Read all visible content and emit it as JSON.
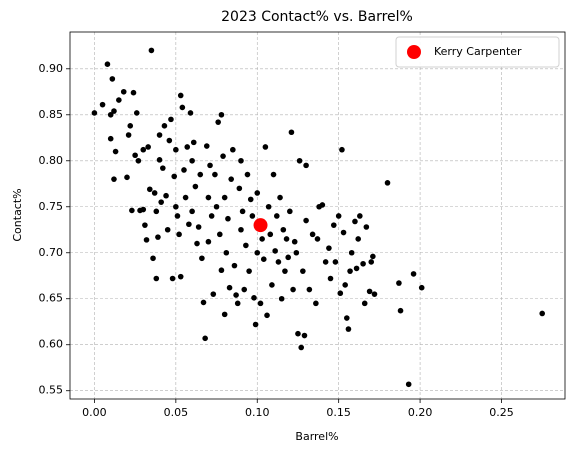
{
  "chart_data": {
    "type": "scatter",
    "title": "2023 Contact% vs. Barrel%",
    "x_label": "Barrel%",
    "y_label": "Contact%",
    "xlim": [
      -0.015,
      0.289
    ],
    "ylim": [
      0.541,
      0.94
    ],
    "xticks": [
      {
        "value": 0,
        "label": "0.00"
      },
      0.05,
      {
        "value": 0.1,
        "label": "0.10"
      },
      0.15,
      {
        "value": 0.2,
        "label": "0.20"
      },
      0.25
    ],
    "yticks": [
      0.55,
      {
        "value": 0.6,
        "label": "0.60"
      },
      0.65,
      {
        "value": 0.7,
        "label": "0.70"
      },
      0.75,
      {
        "value": 0.8,
        "label": "0.80"
      },
      0.85,
      {
        "value": 0.9,
        "label": "0.90"
      }
    ],
    "grid": true,
    "legend": "upper right",
    "series": [
      {
        "color": "#000000",
        "x": [
          0.0,
          0.005,
          0.008,
          0.01,
          0.011,
          0.012,
          0.01,
          0.012,
          0.013,
          0.015,
          0.018,
          0.02,
          0.022,
          0.021,
          0.023,
          0.024,
          0.025,
          0.026,
          0.027,
          0.028,
          0.03,
          0.03,
          0.031,
          0.032,
          0.033,
          0.034,
          0.035,
          0.036,
          0.037,
          0.038,
          0.038,
          0.039,
          0.04,
          0.04,
          0.041,
          0.042,
          0.043,
          0.044,
          0.045,
          0.046,
          0.047,
          0.048,
          0.049,
          0.05,
          0.05,
          0.051,
          0.052,
          0.053,
          0.053,
          0.054,
          0.055,
          0.056,
          0.057,
          0.058,
          0.059,
          0.06,
          0.06,
          0.061,
          0.062,
          0.063,
          0.064,
          0.065,
          0.066,
          0.067,
          0.068,
          0.069,
          0.07,
          0.07,
          0.071,
          0.072,
          0.073,
          0.074,
          0.075,
          0.076,
          0.077,
          0.078,
          0.078,
          0.079,
          0.08,
          0.08,
          0.081,
          0.082,
          0.083,
          0.084,
          0.085,
          0.086,
          0.087,
          0.088,
          0.089,
          0.09,
          0.09,
          0.091,
          0.092,
          0.093,
          0.094,
          0.095,
          0.096,
          0.097,
          0.098,
          0.099,
          0.1,
          0.1,
          0.101,
          0.102,
          0.103,
          0.104,
          0.105,
          0.106,
          0.107,
          0.108,
          0.109,
          0.11,
          0.111,
          0.112,
          0.113,
          0.114,
          0.115,
          0.116,
          0.117,
          0.118,
          0.119,
          0.12,
          0.121,
          0.122,
          0.123,
          0.124,
          0.125,
          0.126,
          0.127,
          0.128,
          0.129,
          0.13,
          0.13,
          0.132,
          0.134,
          0.136,
          0.137,
          0.138,
          0.14,
          0.142,
          0.144,
          0.145,
          0.147,
          0.148,
          0.15,
          0.151,
          0.152,
          0.153,
          0.154,
          0.155,
          0.156,
          0.157,
          0.158,
          0.16,
          0.161,
          0.162,
          0.163,
          0.165,
          0.166,
          0.167,
          0.169,
          0.17,
          0.171,
          0.172,
          0.18,
          0.187,
          0.188,
          0.193,
          0.196,
          0.201,
          0.275
        ],
        "y": [
          0.852,
          0.861,
          0.905,
          0.85,
          0.889,
          0.854,
          0.824,
          0.78,
          0.81,
          0.866,
          0.875,
          0.782,
          0.838,
          0.828,
          0.746,
          0.874,
          0.806,
          0.852,
          0.8,
          0.746,
          0.747,
          0.812,
          0.73,
          0.714,
          0.815,
          0.769,
          0.92,
          0.694,
          0.765,
          0.672,
          0.745,
          0.717,
          0.828,
          0.801,
          0.755,
          0.792,
          0.838,
          0.762,
          0.725,
          0.822,
          0.845,
          0.672,
          0.783,
          0.812,
          0.75,
          0.74,
          0.72,
          0.674,
          0.871,
          0.858,
          0.79,
          0.76,
          0.815,
          0.731,
          0.852,
          0.8,
          0.745,
          0.82,
          0.772,
          0.71,
          0.728,
          0.785,
          0.694,
          0.646,
          0.607,
          0.816,
          0.76,
          0.712,
          0.795,
          0.74,
          0.655,
          0.785,
          0.75,
          0.842,
          0.72,
          0.85,
          0.681,
          0.805,
          0.633,
          0.76,
          0.7,
          0.737,
          0.662,
          0.78,
          0.812,
          0.686,
          0.654,
          0.645,
          0.77,
          0.725,
          0.8,
          0.745,
          0.66,
          0.708,
          0.785,
          0.68,
          0.758,
          0.74,
          0.651,
          0.622,
          0.7,
          0.765,
          0.733,
          0.645,
          0.715,
          0.693,
          0.815,
          0.632,
          0.75,
          0.72,
          0.665,
          0.785,
          0.702,
          0.74,
          0.69,
          0.76,
          0.65,
          0.725,
          0.68,
          0.715,
          0.695,
          0.745,
          0.831,
          0.66,
          0.712,
          0.7,
          0.612,
          0.8,
          0.597,
          0.68,
          0.61,
          0.795,
          0.735,
          0.66,
          0.72,
          0.645,
          0.715,
          0.75,
          0.752,
          0.69,
          0.705,
          0.672,
          0.73,
          0.69,
          0.74,
          0.656,
          0.812,
          0.722,
          0.665,
          0.629,
          0.617,
          0.68,
          0.7,
          0.734,
          0.683,
          0.715,
          0.74,
          0.688,
          0.645,
          0.728,
          0.658,
          0.69,
          0.696,
          0.655,
          0.776,
          0.667,
          0.637,
          0.557,
          0.677,
          0.662,
          0.634
        ]
      },
      {
        "name": "Kerry Carpenter",
        "color": "#ff0000",
        "x": [
          0.102
        ],
        "y": [
          0.73
        ]
      }
    ]
  }
}
